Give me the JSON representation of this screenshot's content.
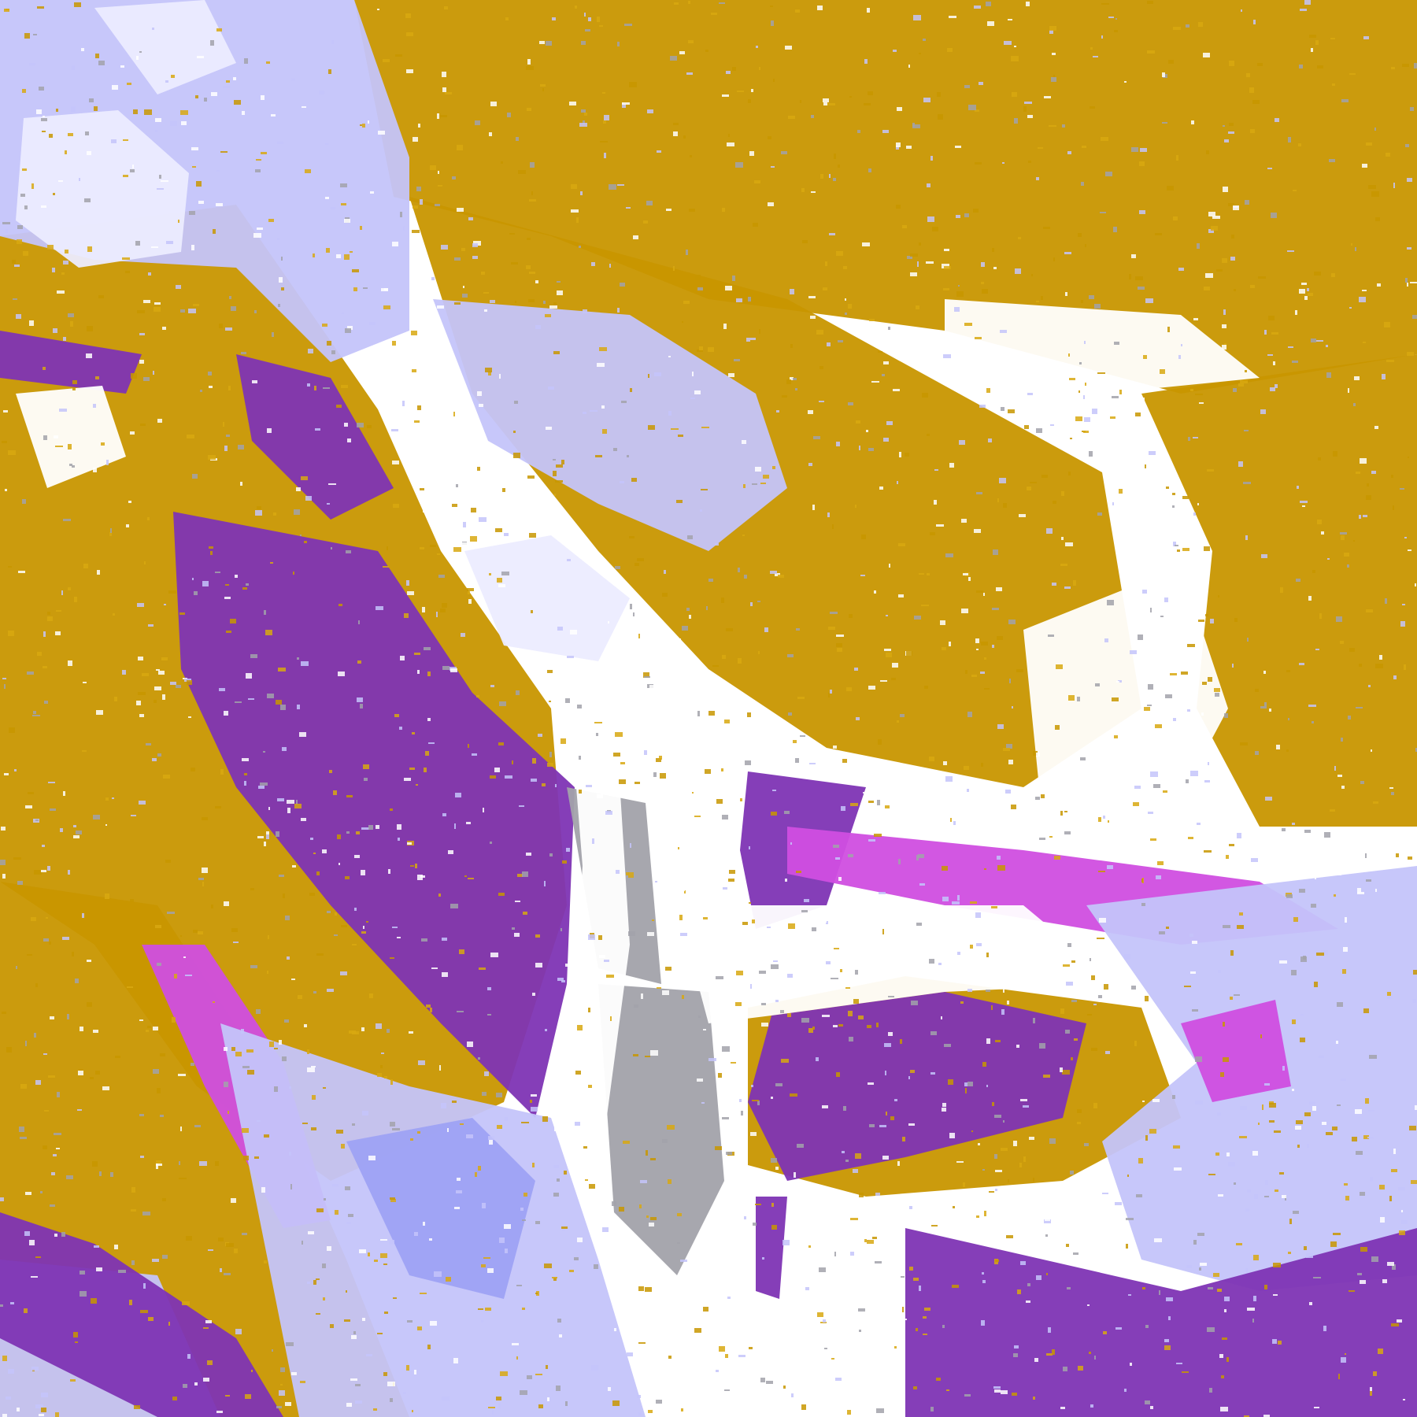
{
  "image": {
    "kind": "false-color satellite imagery",
    "palette": {
      "clear": "#ffffff",
      "gold": "#c89600",
      "gold_light": "#d8a810",
      "purple": "#7e34b4",
      "magenta": "#d04ee0",
      "lavender": "#c4c4fa",
      "lavender_light": "#ececff",
      "periwinkle": "#9ea2f4",
      "gray": "#a2a2aa"
    }
  }
}
